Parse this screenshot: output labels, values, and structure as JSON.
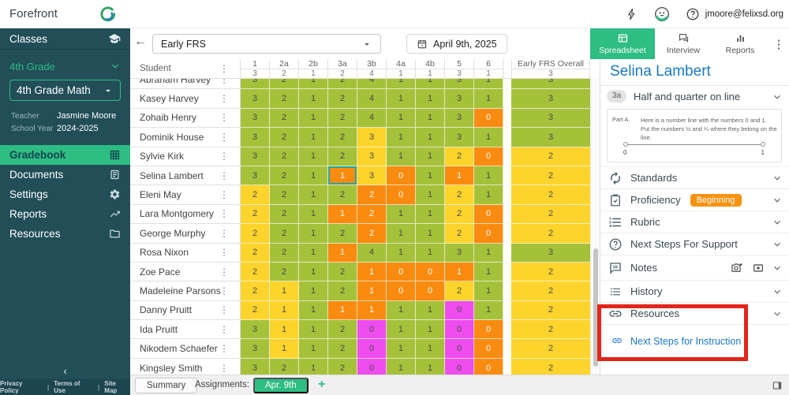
{
  "brand": "Forefront",
  "topbar": {
    "email": "jmoore@felixsd.org"
  },
  "icons": {
    "kebab": "⋮",
    "back_arrow": "←",
    "collapse": "‹",
    "dots_vertical": "⋮",
    "plus": "+"
  },
  "toolbar": {
    "assessment_select": "Early FRS",
    "date": "April 9th, 2025",
    "tabs": [
      {
        "label": "Spreadsheet",
        "icon": "spreadsheet",
        "active": true
      },
      {
        "label": "Interview",
        "icon": "chat",
        "active": false
      },
      {
        "label": "Reports",
        "icon": "bars",
        "active": false
      }
    ]
  },
  "sidebar": {
    "classes_label": "Classes",
    "grade_label": "4th Grade",
    "class_select": "4th Grade Math",
    "meta": [
      {
        "label": "Teacher",
        "value": "Jasmine Moore"
      },
      {
        "label": "School Year",
        "value": "2024-2025"
      }
    ],
    "nav": [
      {
        "label": "Gradebook",
        "icon": "grid",
        "active": true
      },
      {
        "label": "Documents",
        "icon": "document",
        "active": false
      },
      {
        "label": "Settings",
        "icon": "gear",
        "active": false
      },
      {
        "label": "Reports",
        "icon": "trending",
        "active": false
      },
      {
        "label": "Resources",
        "icon": "folder",
        "active": false
      }
    ],
    "footer_links": [
      "Privacy Policy",
      "Terms of Use",
      "Site Map"
    ]
  },
  "gradebook": {
    "student_header": "Student",
    "columns": [
      "1",
      "2a",
      "2b",
      "3a",
      "3b",
      "4a",
      "4b",
      "5",
      "6"
    ],
    "overall_header": "Early FRS Overall",
    "max_scores": [
      "3",
      "2",
      "1",
      "2",
      "4",
      "1",
      "1",
      "3",
      "1"
    ],
    "overall_max": "3",
    "palette": {
      "g": "#a5c13a",
      "y": "#fdd42c",
      "o": "#f98b10",
      "m": "#ee4dee"
    },
    "selected_cell": {
      "row": 5,
      "col": 3,
      "border": "#26a69a"
    },
    "students": [
      {
        "name": "Abraham Harvey",
        "scores": [
          [
            "3",
            "g"
          ],
          [
            "2",
            "g"
          ],
          [
            "1",
            "g"
          ],
          [
            "2",
            "g"
          ],
          [
            "4",
            "g"
          ],
          [
            "1",
            "g"
          ],
          [
            "1",
            "g"
          ],
          [
            "3",
            "g"
          ],
          [
            "1",
            "g"
          ]
        ],
        "overall": [
          "3",
          "g"
        ]
      },
      {
        "name": "Kasey Harvey",
        "scores": [
          [
            "3",
            "g"
          ],
          [
            "2",
            "g"
          ],
          [
            "1",
            "g"
          ],
          [
            "2",
            "g"
          ],
          [
            "4",
            "g"
          ],
          [
            "1",
            "g"
          ],
          [
            "1",
            "g"
          ],
          [
            "3",
            "g"
          ],
          [
            "1",
            "g"
          ]
        ],
        "overall": [
          "3",
          "g"
        ]
      },
      {
        "name": "Zohaib Henry",
        "scores": [
          [
            "3",
            "g"
          ],
          [
            "2",
            "g"
          ],
          [
            "1",
            "g"
          ],
          [
            "2",
            "g"
          ],
          [
            "4",
            "g"
          ],
          [
            "1",
            "g"
          ],
          [
            "1",
            "g"
          ],
          [
            "3",
            "g"
          ],
          [
            "0",
            "o"
          ]
        ],
        "overall": [
          "3",
          "g"
        ]
      },
      {
        "name": "Dominik House",
        "scores": [
          [
            "3",
            "g"
          ],
          [
            "2",
            "g"
          ],
          [
            "1",
            "g"
          ],
          [
            "2",
            "g"
          ],
          [
            "3",
            "y"
          ],
          [
            "1",
            "g"
          ],
          [
            "1",
            "g"
          ],
          [
            "3",
            "g"
          ],
          [
            "1",
            "g"
          ]
        ],
        "overall": [
          "3",
          "g"
        ]
      },
      {
        "name": "Sylvie Kirk",
        "scores": [
          [
            "3",
            "g"
          ],
          [
            "2",
            "g"
          ],
          [
            "1",
            "g"
          ],
          [
            "2",
            "g"
          ],
          [
            "3",
            "y"
          ],
          [
            "1",
            "g"
          ],
          [
            "1",
            "g"
          ],
          [
            "2",
            "y"
          ],
          [
            "0",
            "o"
          ]
        ],
        "overall": [
          "2",
          "y"
        ]
      },
      {
        "name": "Selina Lambert",
        "scores": [
          [
            "3",
            "g"
          ],
          [
            "2",
            "g"
          ],
          [
            "1",
            "g"
          ],
          [
            "1",
            "o"
          ],
          [
            "3",
            "y"
          ],
          [
            "0",
            "o"
          ],
          [
            "1",
            "g"
          ],
          [
            "1",
            "o"
          ],
          [
            "1",
            "g"
          ]
        ],
        "overall": [
          "2",
          "y"
        ]
      },
      {
        "name": "Eleni May",
        "scores": [
          [
            "2",
            "y"
          ],
          [
            "2",
            "g"
          ],
          [
            "1",
            "g"
          ],
          [
            "2",
            "g"
          ],
          [
            "2",
            "o"
          ],
          [
            "0",
            "o"
          ],
          [
            "1",
            "g"
          ],
          [
            "2",
            "y"
          ],
          [
            "1",
            "g"
          ]
        ],
        "overall": [
          "2",
          "y"
        ]
      },
      {
        "name": "Lara Montgomery",
        "scores": [
          [
            "2",
            "y"
          ],
          [
            "2",
            "g"
          ],
          [
            "1",
            "g"
          ],
          [
            "1",
            "o"
          ],
          [
            "2",
            "o"
          ],
          [
            "1",
            "g"
          ],
          [
            "1",
            "g"
          ],
          [
            "2",
            "y"
          ],
          [
            "0",
            "o"
          ]
        ],
        "overall": [
          "2",
          "y"
        ]
      },
      {
        "name": "George Murphy",
        "scores": [
          [
            "2",
            "y"
          ],
          [
            "2",
            "g"
          ],
          [
            "1",
            "g"
          ],
          [
            "2",
            "g"
          ],
          [
            "2",
            "o"
          ],
          [
            "1",
            "g"
          ],
          [
            "1",
            "g"
          ],
          [
            "2",
            "y"
          ],
          [
            "0",
            "o"
          ]
        ],
        "overall": [
          "2",
          "y"
        ]
      },
      {
        "name": "Rosa Nixon",
        "scores": [
          [
            "2",
            "y"
          ],
          [
            "2",
            "g"
          ],
          [
            "1",
            "g"
          ],
          [
            "1",
            "o"
          ],
          [
            "4",
            "g"
          ],
          [
            "1",
            "g"
          ],
          [
            "1",
            "g"
          ],
          [
            "3",
            "g"
          ],
          [
            "1",
            "g"
          ]
        ],
        "overall": [
          "3",
          "g"
        ]
      },
      {
        "name": "Zoe Pace",
        "scores": [
          [
            "2",
            "y"
          ],
          [
            "2",
            "g"
          ],
          [
            "1",
            "g"
          ],
          [
            "2",
            "g"
          ],
          [
            "1",
            "o"
          ],
          [
            "0",
            "o"
          ],
          [
            "0",
            "o"
          ],
          [
            "1",
            "o"
          ],
          [
            "1",
            "g"
          ]
        ],
        "overall": [
          "2",
          "y"
        ]
      },
      {
        "name": "Madeleine Parsons",
        "scores": [
          [
            "2",
            "y"
          ],
          [
            "1",
            "y"
          ],
          [
            "1",
            "g"
          ],
          [
            "2",
            "g"
          ],
          [
            "1",
            "o"
          ],
          [
            "0",
            "o"
          ],
          [
            "0",
            "o"
          ],
          [
            "2",
            "y"
          ],
          [
            "1",
            "g"
          ]
        ],
        "overall": [
          "2",
          "y"
        ]
      },
      {
        "name": "Danny Pruitt",
        "scores": [
          [
            "2",
            "y"
          ],
          [
            "1",
            "y"
          ],
          [
            "1",
            "g"
          ],
          [
            "1",
            "o"
          ],
          [
            "1",
            "o"
          ],
          [
            "1",
            "g"
          ],
          [
            "1",
            "g"
          ],
          [
            "0",
            "m"
          ],
          [
            "1",
            "g"
          ]
        ],
        "overall": [
          "2",
          "y"
        ]
      },
      {
        "name": "Ida Pruitt",
        "scores": [
          [
            "3",
            "g"
          ],
          [
            "1",
            "y"
          ],
          [
            "1",
            "g"
          ],
          [
            "2",
            "g"
          ],
          [
            "0",
            "m"
          ],
          [
            "1",
            "g"
          ],
          [
            "1",
            "g"
          ],
          [
            "0",
            "m"
          ],
          [
            "0",
            "o"
          ]
        ],
        "overall": [
          "2",
          "y"
        ]
      },
      {
        "name": "Nikodem Schaefer",
        "scores": [
          [
            "3",
            "g"
          ],
          [
            "1",
            "y"
          ],
          [
            "1",
            "g"
          ],
          [
            "2",
            "g"
          ],
          [
            "0",
            "m"
          ],
          [
            "1",
            "g"
          ],
          [
            "1",
            "g"
          ],
          [
            "0",
            "m"
          ],
          [
            "0",
            "o"
          ]
        ],
        "overall": [
          "2",
          "y"
        ]
      },
      {
        "name": "Kingsley Smith",
        "scores": [
          [
            "3",
            "g"
          ],
          [
            "2",
            "g"
          ],
          [
            "1",
            "g"
          ],
          [
            "2",
            "g"
          ],
          [
            "0",
            "m"
          ],
          [
            "1",
            "g"
          ],
          [
            "1",
            "g"
          ],
          [
            "0",
            "m"
          ],
          [
            "0",
            "o"
          ]
        ],
        "overall": [
          "2",
          "y"
        ]
      }
    ]
  },
  "bottombar": {
    "summary_label": "Summary",
    "assignments_label": "Assignments:",
    "date_chip": "Apr. 9th"
  },
  "panel": {
    "student_name": "Selina Lambert",
    "item": {
      "code": "3a",
      "title": "Half and quarter on line"
    },
    "question": {
      "part_label": "Part A.",
      "line1": "Here is a number line with the numbers 0 and 1.",
      "line2": "Put the numbers ½ and ¼ where they belong on the line.",
      "numberline_start": "0",
      "numberline_end": "1"
    },
    "sections": [
      {
        "label": "Standards",
        "icon": "sync"
      },
      {
        "label": "Proficiency",
        "icon": "clipboard",
        "badge": "Beginning",
        "badge_color": "#f9920f"
      },
      {
        "label": "Rubric",
        "icon": "rubric"
      },
      {
        "label": "Next Steps For Support",
        "icon": "help"
      },
      {
        "label": "Notes",
        "icon": "comment",
        "actions": [
          "camera-plus",
          "message-plus"
        ],
        "tall": true
      },
      {
        "label": "History",
        "icon": "history"
      },
      {
        "label": "Resources",
        "icon": "link",
        "highlighted": true
      }
    ],
    "instruction_link": "Next Steps for Instruction",
    "annotation_box_color": "#e2261b"
  },
  "colors": {
    "accent_green": "#2ebd83",
    "sidebar_teal": "#224e58",
    "title_blue": "#1a78c2",
    "link_blue": "#1976d2"
  }
}
